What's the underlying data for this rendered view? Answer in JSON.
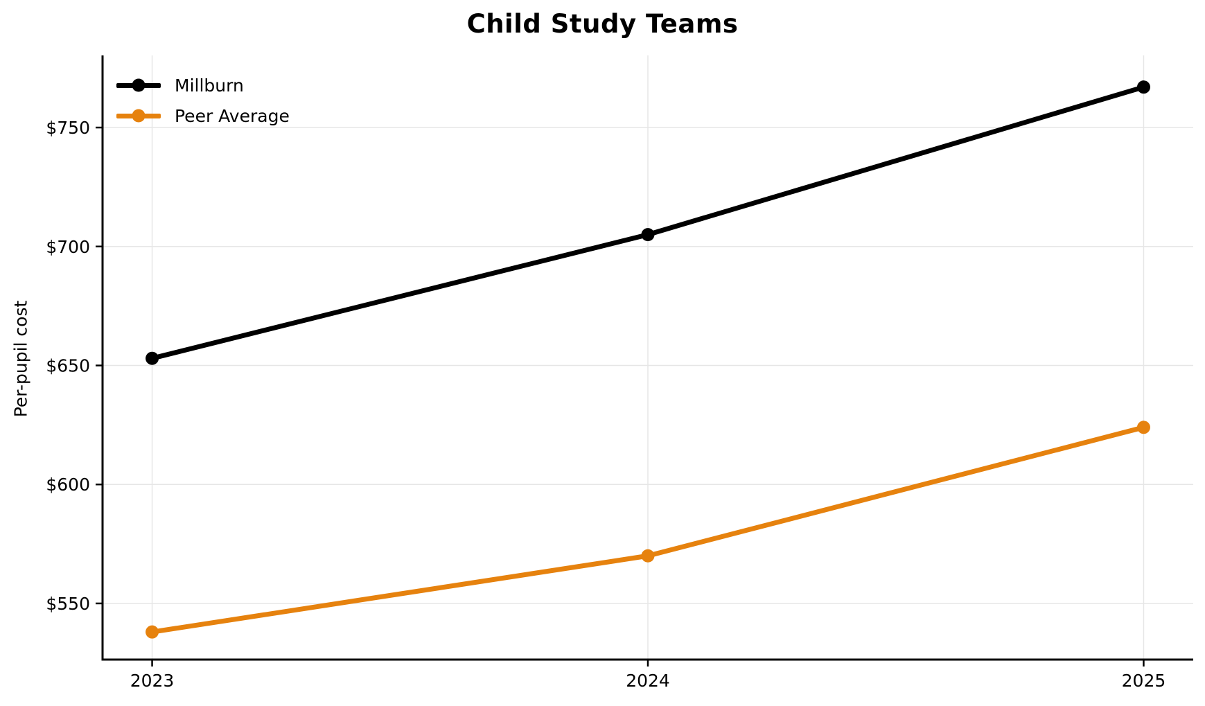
{
  "title": "Child Study Teams",
  "chart_data": {
    "type": "line",
    "title": "Child Study Teams",
    "xlabel": "",
    "ylabel": "Per-pupil cost",
    "x": [
      2023,
      2024,
      2025
    ],
    "x_tick_labels": [
      "2023",
      "2024",
      "2025"
    ],
    "series": [
      {
        "name": "Millburn",
        "color": "#000000",
        "values": [
          653,
          705,
          767
        ]
      },
      {
        "name": "Peer Average",
        "color": "#E6820E",
        "values": [
          538,
          570,
          624
        ]
      }
    ],
    "y_ticks": [
      550,
      600,
      650,
      700,
      750
    ],
    "y_tick_prefix": "$",
    "ylim": [
      526.4,
      780.3
    ],
    "xlim": [
      2022.9,
      2025.1
    ],
    "grid": true,
    "legend_position": "upper-left",
    "colors": {
      "axis": "#000000",
      "gridline": "#E6E6E6",
      "text": "#000000",
      "background": "#FFFFFF"
    }
  }
}
